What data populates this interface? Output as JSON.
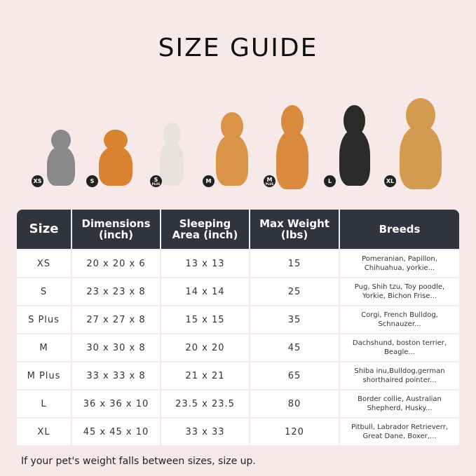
{
  "title": "SIZE GUIDE",
  "pets": [
    {
      "badge": "XS",
      "sub": "",
      "color": "#8a8a8c"
    },
    {
      "badge": "S",
      "sub": "",
      "color": "#d9822f"
    },
    {
      "badge": "S",
      "sub": "PLUS",
      "color": "#e8e2dc"
    },
    {
      "badge": "M",
      "sub": "",
      "color": "#d99448"
    },
    {
      "badge": "M",
      "sub": "PLUS",
      "color": "#d98a3c"
    },
    {
      "badge": "L",
      "sub": "",
      "color": "#2a2a2a"
    },
    {
      "badge": "XL",
      "sub": "",
      "color": "#d49a4e"
    }
  ],
  "table": {
    "headers": [
      "Size",
      "Dimensions (inch)",
      "Sleeping Area (inch)",
      "Max Weight (lbs)",
      "Breeds"
    ],
    "rows": [
      [
        "XS",
        "20 x 20 x 6",
        "13 x 13",
        "15",
        "Pomeranian, Papillon, Chihuahua, yorkie..."
      ],
      [
        "S",
        "23 x 23 x 8",
        "14 x 14",
        "25",
        "Pug, Shih tzu, Toy poodle, Yorkie, Bichon Frise..."
      ],
      [
        "S Plus",
        "27 x 27 x 8",
        "15 x 15",
        "35",
        "Corgi, French Bulldog, Schnauzer..."
      ],
      [
        "M",
        "30 x 30 x 8",
        "20 x 20",
        "45",
        "Dachshund, boston terrier, Beagle..."
      ],
      [
        "M Plus",
        "33 x 33 x 8",
        "21 x 21",
        "65",
        "Shiba inu,Bulldog,german shorthaired pointer..."
      ],
      [
        "L",
        "36 x 36 x 10",
        "23.5 x 23.5",
        "80",
        "Border collie, Australian Shepherd, Husky..."
      ],
      [
        "XL",
        "45 x 45 x 10",
        "33 x 33",
        "120",
        "Pitbull, Labrador Retrieverr, Great Dane, Boxer,..."
      ]
    ]
  },
  "note": "If your pet's weight falls between sizes, size up."
}
